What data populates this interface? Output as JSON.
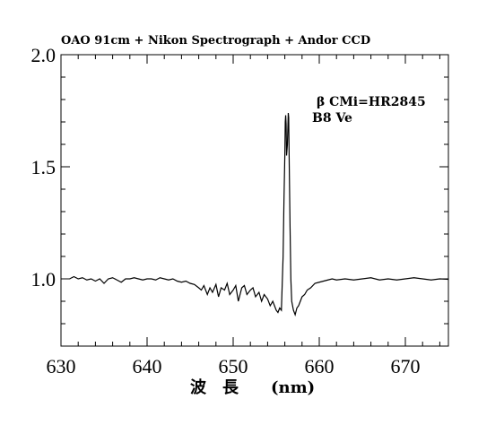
{
  "chart_data": {
    "type": "line",
    "title": "OAO 91cm + Nikon Spectrograph + Andor CCD",
    "xlabel": "波　長　　(nm)",
    "ylabel": "",
    "xlim": [
      630,
      675
    ],
    "ylim": [
      0.7,
      2.0
    ],
    "xticks": [
      630,
      640,
      650,
      660,
      670
    ],
    "yticks": [
      1.0,
      1.5,
      2.0
    ],
    "xtick_labels": [
      "630",
      "640",
      "650",
      "660",
      "670"
    ],
    "ytick_labels": [
      "1.0",
      "1.5",
      "2.0"
    ],
    "grid": false,
    "annotations": [
      "β CMi=HR2845",
      "B8 Ve"
    ],
    "series": [
      {
        "x": [
          631.0,
          631.5,
          632.0,
          632.5,
          633.0,
          633.5,
          634.0,
          634.5,
          635.0,
          635.5,
          636.0,
          636.5,
          637.0,
          637.5,
          638.0,
          638.5,
          639.0,
          639.5,
          640.0,
          640.5,
          641.0,
          641.5,
          642.0,
          642.5,
          643.0,
          643.5,
          644.0,
          644.5,
          645.0,
          645.5,
          646.0,
          646.3,
          646.6,
          647.0,
          647.3,
          647.6,
          648.0,
          648.3,
          648.6,
          649.0,
          649.3,
          649.6,
          650.0,
          650.3,
          650.6,
          651.0,
          651.3,
          651.6,
          652.0,
          652.3,
          652.6,
          653.0,
          653.3,
          653.6,
          654.0,
          654.3,
          654.6,
          655.0,
          655.2,
          655.4,
          655.6,
          655.8,
          655.9,
          656.0,
          656.05,
          656.1,
          656.15,
          656.2,
          656.3,
          656.4,
          656.45,
          656.5,
          656.6,
          656.7,
          656.8,
          657.0,
          657.2,
          657.4,
          657.6,
          657.8,
          658.0,
          658.3,
          658.6,
          659.0,
          659.5,
          660.0,
          660.5,
          661.0,
          661.5,
          662.0,
          663.0,
          664.0,
          665.0,
          666.0,
          667.0,
          668.0,
          669.0,
          670.0,
          671.0,
          672.0,
          673.0,
          674.0,
          675.0
        ],
        "y": [
          1.0,
          1.01,
          1.0,
          1.005,
          0.995,
          1.0,
          0.99,
          1.0,
          0.98,
          1.0,
          1.005,
          0.995,
          0.985,
          1.0,
          1.0,
          1.005,
          1.0,
          0.995,
          1.0,
          1.0,
          0.995,
          1.005,
          1.0,
          0.995,
          1.0,
          0.99,
          0.985,
          0.99,
          0.98,
          0.975,
          0.96,
          0.95,
          0.97,
          0.93,
          0.96,
          0.94,
          0.975,
          0.92,
          0.96,
          0.95,
          0.98,
          0.93,
          0.95,
          0.97,
          0.9,
          0.96,
          0.97,
          0.93,
          0.95,
          0.96,
          0.92,
          0.94,
          0.9,
          0.93,
          0.91,
          0.88,
          0.9,
          0.86,
          0.85,
          0.87,
          0.86,
          1.1,
          1.35,
          1.55,
          1.7,
          1.73,
          1.69,
          1.55,
          1.6,
          1.74,
          1.72,
          1.55,
          1.25,
          1.0,
          0.9,
          0.86,
          0.84,
          0.87,
          0.88,
          0.9,
          0.92,
          0.93,
          0.95,
          0.96,
          0.98,
          0.985,
          0.99,
          0.995,
          1.0,
          0.995,
          1.0,
          0.995,
          1.0,
          1.005,
          0.995,
          1.0,
          0.995,
          1.0,
          1.005,
          1.0,
          0.995,
          1.0,
          0.998
        ]
      }
    ]
  }
}
